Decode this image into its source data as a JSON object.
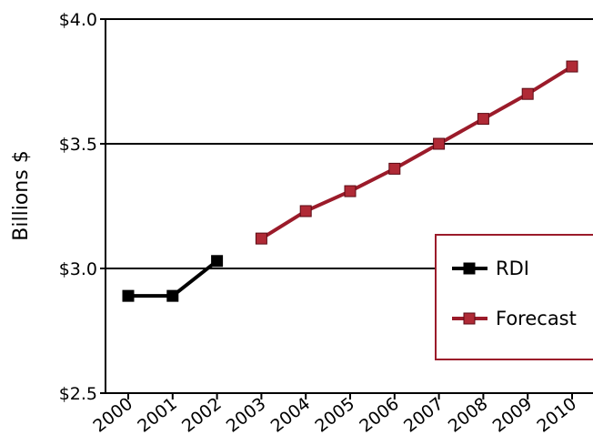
{
  "chart_data": {
    "type": "line",
    "title": "",
    "xlabel": "",
    "ylabel": "Billions $",
    "ylim": [
      2.5,
      4.0
    ],
    "yticks": [
      2.5,
      3.0,
      3.5,
      4.0
    ],
    "ytick_labels": [
      "$2.5",
      "$3.0",
      "$3.5",
      "$4.0"
    ],
    "categories": [
      "2000",
      "2001",
      "2002",
      "2003",
      "2004",
      "2005",
      "2006",
      "2007",
      "2008",
      "2009",
      "2010"
    ],
    "grid": "horizontal",
    "legend_position": "right",
    "series": [
      {
        "name": "RDI",
        "color": "#000000",
        "marker": "square",
        "x": [
          "2000",
          "2001",
          "2002"
        ],
        "values": [
          2.89,
          2.89,
          3.03
        ]
      },
      {
        "name": "Forecast",
        "color": "#9b1b2a",
        "marker_fill": "#b02a36",
        "marker": "square",
        "x": [
          "2003",
          "2004",
          "2005",
          "2006",
          "2007",
          "2008",
          "2009",
          "2010"
        ],
        "values": [
          3.12,
          3.23,
          3.31,
          3.4,
          3.5,
          3.6,
          3.7,
          3.81
        ]
      }
    ]
  }
}
